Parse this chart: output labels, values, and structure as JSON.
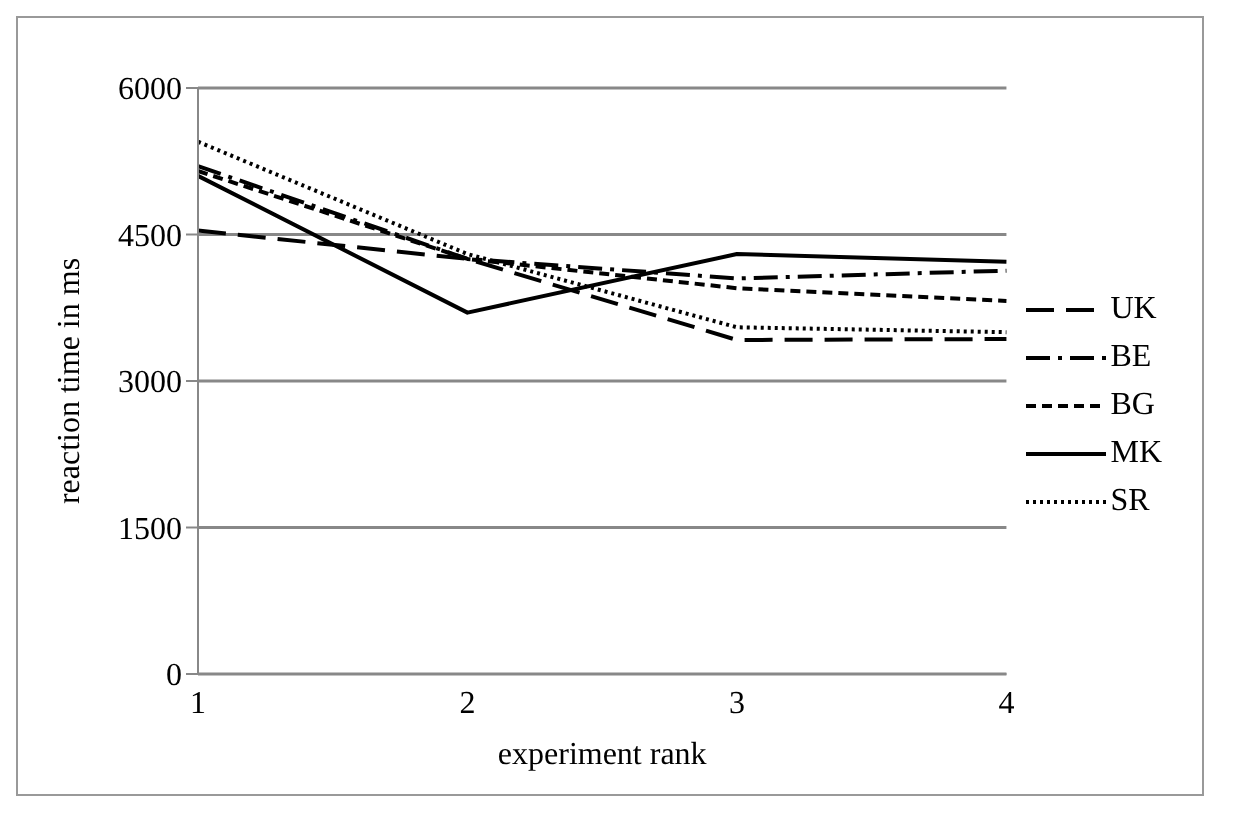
{
  "chart_data": {
    "type": "line",
    "xlabel": "experiment rank",
    "ylabel": "reaction  time in ms",
    "categories": [
      "1",
      "2",
      "3",
      "4"
    ],
    "series": [
      {
        "name": "UK",
        "color": "#000000",
        "line_style": "longdash",
        "values": [
          4540,
          4250,
          3420,
          3430
        ]
      },
      {
        "name": "BE",
        "color": "#000000",
        "line_style": "dashdot",
        "values": [
          5200,
          4250,
          4050,
          4130
        ]
      },
      {
        "name": "BG",
        "color": "#000000",
        "line_style": "dashed",
        "values": [
          5150,
          4250,
          3950,
          3820
        ]
      },
      {
        "name": "MK",
        "color": "#000000",
        "line_style": "solid",
        "values": [
          5100,
          3700,
          4300,
          4220
        ]
      },
      {
        "name": "SR",
        "color": "#000000",
        "line_style": "dotted",
        "values": [
          5450,
          4300,
          3550,
          3500
        ]
      }
    ],
    "ylim": [
      0,
      6000
    ],
    "yticks": [
      0,
      1500,
      3000,
      4500,
      6000
    ],
    "grid": "y",
    "legend": "right",
    "marker": "none"
  }
}
